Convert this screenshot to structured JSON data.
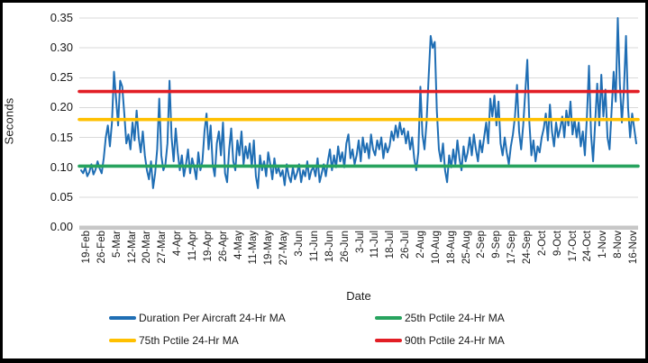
{
  "window": {
    "background": "#ffffff",
    "border_color": "#000000"
  },
  "axis": {
    "x_title": "Date",
    "y_title": "Seconds"
  },
  "chart_data": {
    "type": "line",
    "title": "",
    "xlabel": "Date",
    "ylabel": "Seconds",
    "ylim": [
      0,
      0.35
    ],
    "ytick_step": 0.05,
    "grid": "horizontal-only",
    "gridline_color": "#d9d9d9",
    "zero_band_color": "#c7c7c7",
    "legend_position": "bottom",
    "categories": [
      "19-Feb",
      "26-Feb",
      "5-Mar",
      "12-Mar",
      "20-Mar",
      "27-Mar",
      "4-Apr",
      "11-Apr",
      "19-Apr",
      "26-Apr",
      "4-May",
      "11-May",
      "19-May",
      "27-May",
      "3-Jun",
      "11-Jun",
      "18-Jun",
      "26-Jun",
      "3-Jul",
      "11-Jul",
      "18-Jul",
      "26-Jul",
      "2-Aug",
      "10-Aug",
      "18-Aug",
      "25-Aug",
      "2-Sep",
      "9-Sep",
      "17-Sep",
      "24-Sep",
      "2-Oct",
      "9-Oct",
      "17-Oct",
      "24-Oct",
      "1-Nov",
      "8-Nov",
      "16-Nov"
    ],
    "series": [
      {
        "name": "Duration Per Aircraft 24-Hr MA",
        "color": "#1f6eb4",
        "style": "line",
        "values": [
          0.095,
          0.09,
          0.1,
          0.085,
          0.092,
          0.105,
          0.088,
          0.096,
          0.11,
          0.098,
          0.09,
          0.115,
          0.15,
          0.17,
          0.135,
          0.175,
          0.26,
          0.215,
          0.17,
          0.245,
          0.235,
          0.19,
          0.14,
          0.155,
          0.13,
          0.175,
          0.145,
          0.195,
          0.15,
          0.125,
          0.16,
          0.12,
          0.095,
          0.08,
          0.11,
          0.065,
          0.09,
          0.13,
          0.215,
          0.12,
          0.095,
          0.105,
          0.14,
          0.245,
          0.15,
          0.11,
          0.165,
          0.125,
          0.095,
          0.12,
          0.085,
          0.105,
          0.13,
          0.09,
          0.115,
          0.1,
          0.08,
          0.125,
          0.095,
          0.11,
          0.16,
          0.19,
          0.13,
          0.17,
          0.105,
          0.085,
          0.14,
          0.16,
          0.12,
          0.175,
          0.09,
          0.075,
          0.13,
          0.165,
          0.11,
          0.095,
          0.145,
          0.12,
          0.16,
          0.105,
          0.135,
          0.115,
          0.14,
          0.1,
          0.145,
          0.085,
          0.065,
          0.12,
          0.095,
          0.11,
          0.085,
          0.125,
          0.105,
          0.08,
          0.115,
          0.09,
          0.1,
          0.085,
          0.095,
          0.07,
          0.105,
          0.085,
          0.075,
          0.1,
          0.08,
          0.09,
          0.105,
          0.075,
          0.095,
          0.085,
          0.11,
          0.08,
          0.095,
          0.1,
          0.085,
          0.115,
          0.075,
          0.09,
          0.105,
          0.085,
          0.11,
          0.13,
          0.095,
          0.12,
          0.1,
          0.135,
          0.11,
          0.125,
          0.1,
          0.14,
          0.155,
          0.115,
          0.13,
          0.105,
          0.12,
          0.145,
          0.11,
          0.15,
          0.125,
          0.14,
          0.115,
          0.155,
          0.13,
          0.12,
          0.145,
          0.13,
          0.15,
          0.115,
          0.14,
          0.125,
          0.135,
          0.16,
          0.145,
          0.17,
          0.15,
          0.175,
          0.155,
          0.165,
          0.14,
          0.16,
          0.13,
          0.15,
          0.115,
          0.095,
          0.125,
          0.235,
          0.155,
          0.13,
          0.175,
          0.25,
          0.32,
          0.3,
          0.31,
          0.195,
          0.13,
          0.11,
          0.14,
          0.095,
          0.075,
          0.12,
          0.1,
          0.13,
          0.105,
          0.145,
          0.115,
          0.095,
          0.135,
          0.11,
          0.125,
          0.15,
          0.12,
          0.155,
          0.13,
          0.11,
          0.145,
          0.125,
          0.15,
          0.175,
          0.14,
          0.215,
          0.185,
          0.22,
          0.17,
          0.21,
          0.14,
          0.12,
          0.15,
          0.125,
          0.105,
          0.135,
          0.155,
          0.185,
          0.238,
          0.16,
          0.13,
          0.17,
          0.225,
          0.28,
          0.175,
          0.12,
          0.145,
          0.11,
          0.135,
          0.125,
          0.15,
          0.165,
          0.19,
          0.145,
          0.205,
          0.16,
          0.135,
          0.175,
          0.15,
          0.165,
          0.185,
          0.15,
          0.195,
          0.17,
          0.21,
          0.155,
          0.18,
          0.15,
          0.175,
          0.135,
          0.16,
          0.12,
          0.185,
          0.27,
          0.155,
          0.11,
          0.175,
          0.24,
          0.17,
          0.255,
          0.185,
          0.23,
          0.15,
          0.13,
          0.195,
          0.26,
          0.21,
          0.35,
          0.24,
          0.175,
          0.23,
          0.32,
          0.2,
          0.15,
          0.19,
          0.165,
          0.14
        ]
      },
      {
        "name": "25th Pctile 24-Hr MA",
        "color": "#27a35e",
        "style": "hline",
        "value": 0.102
      },
      {
        "name": "75th Pctile 24-Hr MA",
        "color": "#ffc000",
        "style": "hline",
        "value": 0.18
      },
      {
        "name": "90th Pctile 24-Hr MA",
        "color": "#e21e25",
        "style": "hline",
        "value": 0.227
      }
    ]
  },
  "legend": {
    "rows": [
      [
        {
          "series": 0
        },
        {
          "series": 1
        }
      ],
      [
        {
          "series": 2
        },
        {
          "series": 3
        }
      ]
    ]
  }
}
